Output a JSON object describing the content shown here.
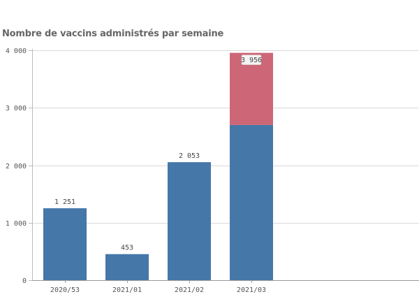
{
  "chart_data": {
    "type": "bar",
    "stacked": true,
    "title": "Nombre de vaccins administrés par semaine",
    "xlabel": "",
    "ylabel": "",
    "ylim": [
      0,
      4000
    ],
    "yticks": [
      0,
      1000,
      2000,
      3000,
      4000
    ],
    "ytick_labels": [
      "0",
      "1 000",
      "2 000",
      "3 000",
      "4 000"
    ],
    "categories": [
      "2020/53",
      "2021/01",
      "2021/02",
      "2021/03"
    ],
    "series": [
      {
        "values": [
          1251,
          453,
          2053,
          2700
        ],
        "color": "#4577a9"
      },
      {
        "values": [
          0,
          0,
          0,
          1256
        ],
        "color": "#cd6777"
      }
    ],
    "totals": [
      1251,
      453,
      2053,
      3956
    ],
    "total_labels": [
      "1 251",
      "453",
      "2 053",
      "3 956"
    ],
    "grid": true,
    "legend": "none"
  }
}
